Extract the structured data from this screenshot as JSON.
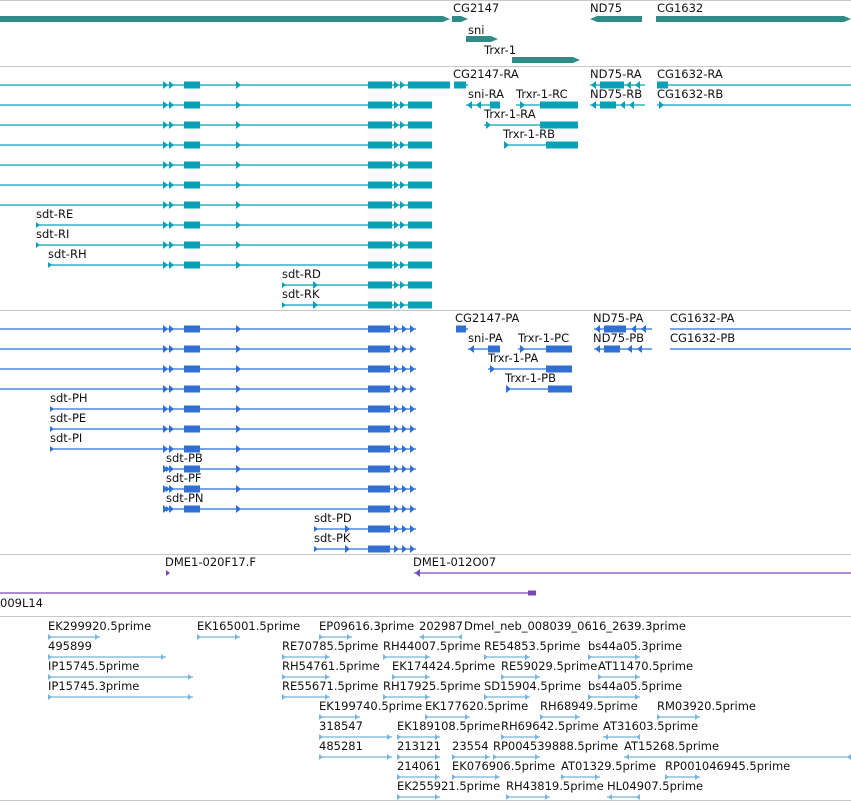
{
  "colors": {
    "gene": "#2e8b88",
    "mrna_flybase": "#0aa0b8",
    "mrna_refseq": "#2f6fd6",
    "clone": "#7a49b8",
    "est": "#78b4dc",
    "divider": "#c8c8c8"
  },
  "tracks": {
    "genes": {
      "labels": [
        "CG2147",
        "sni",
        "Trxr-1",
        "ND75",
        "CG1632"
      ]
    },
    "flybase_transcripts": {
      "labels": [
        "CG2147-RA",
        "ND75-RA",
        "CG1632-RA",
        "sni-RA",
        "Trxr-1-RC",
        "ND75-RB",
        "CG1632-RB",
        "Trxr-1-RA",
        "Trxr-1-RB",
        "sdt-RE",
        "sdt-RI",
        "sdt-RH",
        "sdt-RD",
        "sdt-RK"
      ]
    },
    "refseq_transcripts": {
      "labels": [
        "CG2147-PA",
        "ND75-PA",
        "CG1632-PA",
        "sni-PA",
        "Trxr-1-PC",
        "ND75-PB",
        "CG1632-PB",
        "Trxr-1-PA",
        "Trxr-1-PB",
        "sdt-PH",
        "sdt-PE",
        "sdt-PI",
        "sdt-PB",
        "sdt-PF",
        "sdt-PN",
        "sdt-PD",
        "sdt-PK"
      ]
    },
    "clones": {
      "labels": [
        "DME1-020F17.F",
        "DME1-012O07",
        "009L14"
      ]
    },
    "ests": {
      "labels": [
        "EK299920.5prime",
        "EK165001.5prime",
        "EP09616.3prime",
        "202987",
        "Dmel_neb_008039_0616_2639.3prime",
        "495899",
        "RE70785.5prime",
        "RH44007.5prime",
        "RE54853.5prime",
        "bs44a05.3prime",
        "IP15745.5prime",
        "RH54761.5prime",
        "EK174424.5prime",
        "RE59029.5prime",
        "AT11470.5prime",
        "IP15745.3prime",
        "RE55671.5prime",
        "RH17925.5prime",
        "SD15904.5prime",
        "bs44a05.5prime",
        "EK199740.5prime",
        "EK177620.5prime",
        "RH68949.5prime",
        "RM03920.5prime",
        "318547",
        "EK189108.5prime",
        "RH69642.5prime",
        "AT31603.5prime",
        "485281",
        "213121",
        "23554",
        "RP004539888.5prime",
        "AT15268.5prime",
        "214061",
        "EK076906.5prime",
        "AT01329.5prime",
        "RP001046945.5prime",
        "EK255921.5prime",
        "RH43819.5prime",
        "HL04907.5prime"
      ]
    }
  }
}
